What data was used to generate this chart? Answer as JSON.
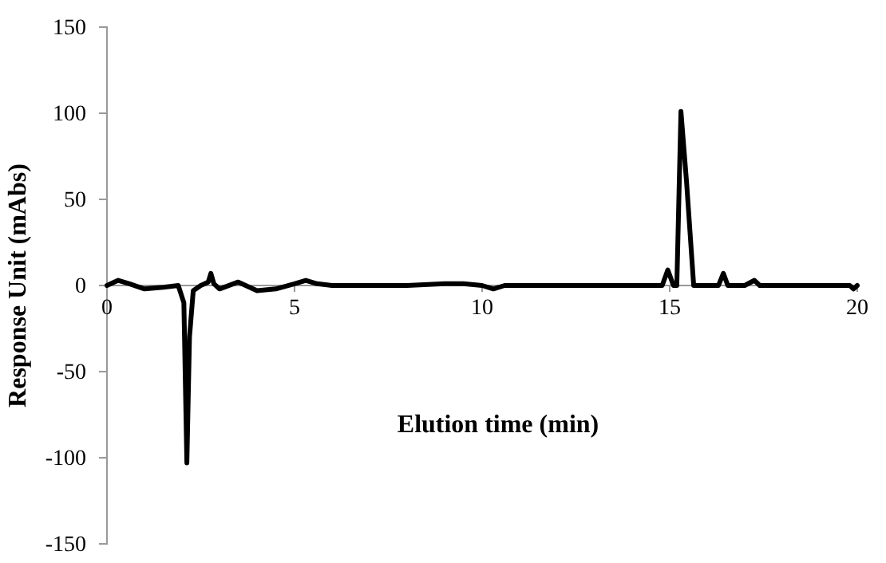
{
  "chart_data": {
    "type": "line",
    "xlabel": "Elution time (min)",
    "ylabel": "Response Unit (mAbs)",
    "xlim": [
      0,
      20
    ],
    "xticks": [
      0,
      5,
      10,
      15,
      20
    ],
    "ylim": [
      -150,
      150
    ],
    "yticks": [
      -150,
      -100,
      -50,
      0,
      50,
      100,
      150
    ],
    "grid": false,
    "marker": "none",
    "line_style": "solid",
    "series": [
      {
        "color": "#000000",
        "x": [
          0,
          0.3,
          0.6,
          1,
          1.5,
          1.9,
          2.05,
          2.13,
          2.2,
          2.3,
          2.5,
          2.7,
          2.77,
          2.85,
          3,
          3.5,
          4,
          4.5,
          5,
          5.3,
          5.6,
          6,
          7,
          8,
          9,
          9.5,
          10,
          10.3,
          10.6,
          11,
          12,
          13,
          14,
          14.8,
          14.95,
          15.1,
          15.19,
          15.3,
          15.45,
          15.64,
          16,
          16.3,
          16.43,
          16.55,
          17,
          17.26,
          17.4,
          18,
          19,
          19.8,
          19.9,
          20
        ],
        "values": [
          0,
          3,
          1,
          -2,
          -1,
          0,
          -10,
          -103,
          -30,
          -3,
          0,
          2,
          7,
          1,
          -2,
          2,
          -3,
          -2,
          1,
          3,
          1,
          0,
          0,
          0,
          1,
          1,
          0,
          -2,
          0,
          0,
          0,
          0,
          0,
          0,
          9,
          0,
          0,
          101,
          60,
          0,
          0,
          0,
          7,
          0,
          0,
          3,
          0,
          0,
          0,
          0,
          -2,
          0
        ]
      }
    ]
  }
}
